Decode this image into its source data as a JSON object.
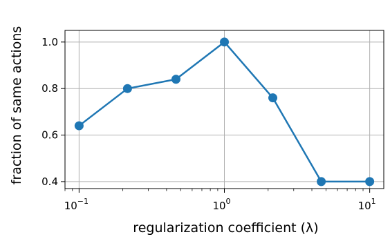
{
  "chart_data": {
    "type": "line",
    "xscale": "log",
    "xlabel": "regularization coefficient (λ)",
    "ylabel": "fraction of same actions",
    "xlim": [
      0.08,
      12.5
    ],
    "ylim": [
      0.37,
      1.05
    ],
    "grid": true,
    "x_ticks": [
      {
        "value": 0.1,
        "base": "10",
        "exp": "−1"
      },
      {
        "value": 1,
        "base": "10",
        "exp": "0"
      },
      {
        "value": 10,
        "base": "10",
        "exp": "1"
      }
    ],
    "y_ticks": [
      {
        "value": 0.4,
        "label": "0.4"
      },
      {
        "value": 0.6,
        "label": "0.6"
      },
      {
        "value": 0.8,
        "label": "0.8"
      },
      {
        "value": 1.0,
        "label": "1.0"
      }
    ],
    "series": [
      {
        "color": "#1f77b4",
        "x": [
          0.1,
          0.2154,
          0.4642,
          1.0,
          2.154,
          4.642,
          10.0
        ],
        "y": [
          0.64,
          0.8,
          0.84,
          1.0,
          0.76,
          0.4,
          0.4
        ]
      }
    ]
  }
}
